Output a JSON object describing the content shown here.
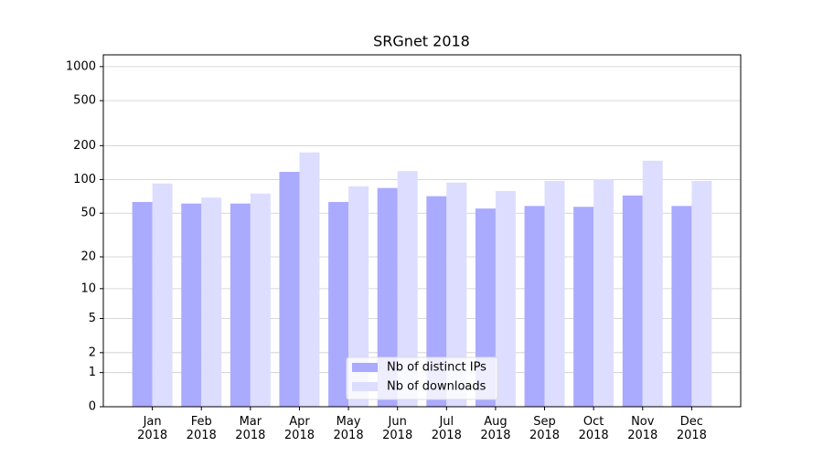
{
  "chart_data": {
    "type": "bar",
    "title": "SRGnet 2018",
    "scale": "log1p",
    "categories": [
      "Jan 2018",
      "Feb 2018",
      "Mar 2018",
      "Apr 2018",
      "May 2018",
      "Jun 2018",
      "Jul 2018",
      "Aug 2018",
      "Sep 2018",
      "Oct 2018",
      "Nov 2018",
      "Dec 2018"
    ],
    "series": [
      {
        "name": "Nb of distinct IPs",
        "color": "#aaaaff",
        "values": [
          63,
          61,
          61,
          117,
          63,
          84,
          71,
          55,
          58,
          57,
          72,
          58
        ]
      },
      {
        "name": "Nb of downloads",
        "color": "#ddddff",
        "values": [
          92,
          69,
          75,
          174,
          87,
          119,
          94,
          79,
          97,
          101,
          147,
          97
        ]
      }
    ],
    "ylim": [
      0,
      1270
    ],
    "yticks": [
      0,
      1,
      2,
      5,
      10,
      20,
      50,
      100,
      200,
      500,
      1000
    ],
    "grid": true,
    "legend": "lower center"
  }
}
